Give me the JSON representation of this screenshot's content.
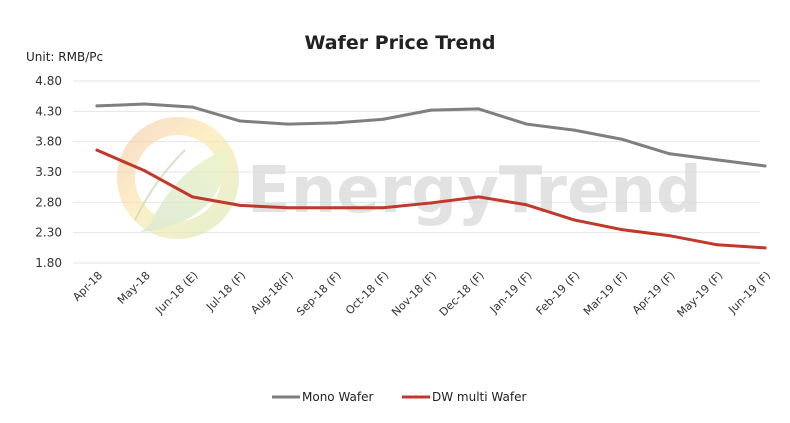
{
  "chart_data": {
    "type": "line",
    "title": "Wafer Price Trend",
    "unit_label": "Unit: RMB/Pc",
    "xlabel": "",
    "ylabel": "",
    "ylim": [
      1.8,
      4.8
    ],
    "yticks": [
      "4.80",
      "4.30",
      "3.80",
      "3.30",
      "2.80",
      "2.30",
      "1.80"
    ],
    "ytick_values": [
      4.8,
      4.3,
      3.8,
      3.3,
      2.8,
      2.3,
      1.8
    ],
    "grid": true,
    "legend_position": "bottom",
    "categories": [
      "Apr-18",
      "May-18",
      "Jun-18 (E)",
      "Jul-18 (F)",
      "Aug-18(F)",
      "Sep-18 (F)",
      "Oct-18 (F)",
      "Nov-18 (F)",
      "Dec-18 (F)",
      "Jan-19 (F)",
      "Feb-19 (F)",
      "Mar-19 (F)",
      "Apr-19 (F)",
      "May-19 (F)",
      "Jun-19 (F)"
    ],
    "series": [
      {
        "name": "Mono Wafer",
        "color": "#7f7f7f",
        "values": [
          4.39,
          4.42,
          4.37,
          4.14,
          4.09,
          4.11,
          4.17,
          4.32,
          4.34,
          4.09,
          3.99,
          3.84,
          3.6,
          3.5,
          3.4
        ]
      },
      {
        "name": "DW multi Wafer",
        "color": "#c0392b",
        "values": [
          3.66,
          3.32,
          2.89,
          2.75,
          2.71,
          2.71,
          2.71,
          2.79,
          2.89,
          2.76,
          2.51,
          2.35,
          2.25,
          2.1,
          2.05
        ]
      }
    ]
  },
  "watermark": {
    "text": "EnergyTrend",
    "logo": "energytrend-leaf-logo"
  }
}
